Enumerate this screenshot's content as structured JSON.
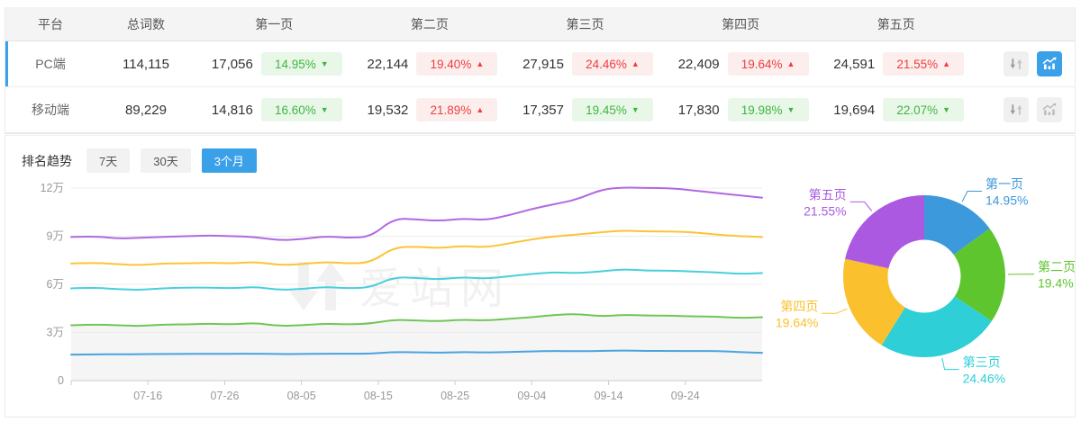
{
  "colors": {
    "accent": "#3aa0e8",
    "badge_down_fg": "#3eb63f",
    "badge_down_bg": "#e9f7e9",
    "badge_up_fg": "#ef3d3d",
    "badge_up_bg": "#fdeeee",
    "axis_text": "#999999",
    "grid_line": "#ececec",
    "watermark": "rgba(0,0,0,0.055)"
  },
  "table": {
    "headers": [
      "平台",
      "总词数",
      "第一页",
      "第二页",
      "第三页",
      "第四页",
      "第五页"
    ],
    "rows": [
      {
        "platform": "PC端",
        "total": "114,115",
        "pages": [
          {
            "count": "17,056",
            "pct": "14.95%",
            "dir": "down"
          },
          {
            "count": "22,144",
            "pct": "19.40%",
            "dir": "up"
          },
          {
            "count": "27,915",
            "pct": "24.46%",
            "dir": "up"
          },
          {
            "count": "22,409",
            "pct": "19.64%",
            "dir": "up"
          },
          {
            "count": "24,591",
            "pct": "21.55%",
            "dir": "up"
          }
        ]
      },
      {
        "platform": "移动端",
        "total": "89,229",
        "pages": [
          {
            "count": "14,816",
            "pct": "16.60%",
            "dir": "down"
          },
          {
            "count": "19,532",
            "pct": "21.89%",
            "dir": "up"
          },
          {
            "count": "17,357",
            "pct": "19.45%",
            "dir": "down"
          },
          {
            "count": "17,830",
            "pct": "19.98%",
            "dir": "down"
          },
          {
            "count": "19,694",
            "pct": "22.07%",
            "dir": "down"
          }
        ]
      }
    ]
  },
  "trend_section": {
    "title": "排名趋势",
    "range_tabs": [
      {
        "label": "7天",
        "active": false
      },
      {
        "label": "30天",
        "active": false
      },
      {
        "label": "3个月",
        "active": true
      }
    ],
    "watermark": "爱站网"
  },
  "chart_data": [
    {
      "type": "line",
      "title": "",
      "xlabel": "",
      "ylabel": "",
      "x_days_span": 90,
      "sample_step_days": 3,
      "x_tick_days": [
        10,
        20,
        30,
        40,
        50,
        60,
        70,
        80
      ],
      "x_tick_labels": [
        "07-16",
        "07-26",
        "08-05",
        "08-15",
        "08-25",
        "09-04",
        "09-14",
        "09-24"
      ],
      "y_ticks": [
        0,
        30000,
        60000,
        90000,
        120000
      ],
      "y_tick_labels": [
        "0",
        "3万",
        "6万",
        "9万",
        "12万"
      ],
      "ylim": [
        0,
        128000
      ],
      "grid": true,
      "legend": "none",
      "series": [
        {
          "name": "第一页",
          "color": "#4aa3df",
          "area": false,
          "values": [
            16200,
            16300,
            16400,
            16500,
            16600,
            16600,
            16700,
            16700,
            16800,
            16500,
            16600,
            16800,
            16700,
            16800,
            17800,
            17600,
            17400,
            17800,
            17500,
            17800,
            18200,
            18500,
            18300,
            18500,
            18800,
            18500,
            18500,
            18400,
            18500,
            17800,
            17300
          ]
        },
        {
          "name": "第二页(累计)",
          "color": "#71c657",
          "area": true,
          "values": [
            34500,
            35000,
            34500,
            34000,
            35000,
            35000,
            35500,
            35000,
            36000,
            34000,
            34500,
            35500,
            35000,
            35500,
            38000,
            37500,
            37000,
            38000,
            37500,
            38500,
            39500,
            41000,
            41500,
            40000,
            41000,
            40500,
            40500,
            40000,
            40000,
            39000,
            39500
          ]
        },
        {
          "name": "第三页(累计)",
          "color": "#49cfdb",
          "area": false,
          "values": [
            57500,
            58000,
            57000,
            56500,
            57500,
            58000,
            58000,
            57500,
            58500,
            56500,
            57000,
            58500,
            57500,
            58000,
            64500,
            64000,
            63000,
            64500,
            63500,
            65000,
            66500,
            67500,
            67000,
            68000,
            69500,
            68500,
            68500,
            68000,
            67500,
            66500,
            67000
          ]
        },
        {
          "name": "第四页(累计)",
          "color": "#fbc437",
          "area": false,
          "values": [
            73000,
            73500,
            72500,
            72000,
            73000,
            73000,
            73500,
            73000,
            74000,
            72000,
            72500,
            74000,
            73000,
            73500,
            83000,
            83500,
            82500,
            84000,
            83000,
            85500,
            88000,
            90000,
            91000,
            92500,
            93500,
            93000,
            93000,
            92500,
            91000,
            90000,
            89500
          ]
        },
        {
          "name": "第五页(累计)",
          "color": "#b168e1",
          "area": false,
          "values": [
            89500,
            90000,
            88500,
            89000,
            89500,
            90000,
            90500,
            90000,
            89500,
            87500,
            88000,
            90000,
            89000,
            89500,
            101000,
            100500,
            99500,
            101000,
            100000,
            103000,
            107000,
            110000,
            113000,
            119000,
            120500,
            120000,
            120000,
            118500,
            117000,
            115500,
            114000
          ]
        }
      ]
    },
    {
      "type": "pie",
      "subtype": "donut",
      "title": "",
      "labels": [
        "第一页",
        "第二页",
        "第三页",
        "第四页",
        "第五页"
      ],
      "values": [
        14.95,
        19.4,
        24.46,
        19.64,
        21.55
      ],
      "display_values": [
        "14.95%",
        "19.4%",
        "24.46%",
        "19.64%",
        "21.55%"
      ],
      "colors": [
        "#3b99dc",
        "#5ec52e",
        "#2ecfd6",
        "#fbc02d",
        "#ab59e0"
      ],
      "inner_radius_ratio": 0.45,
      "start_angle_deg": 0,
      "clockwise": true,
      "label_position": "outside"
    }
  ]
}
